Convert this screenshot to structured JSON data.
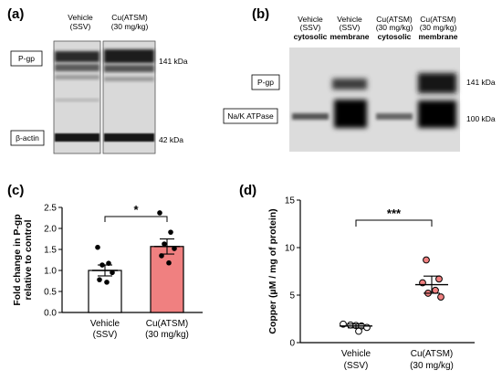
{
  "panel_a": {
    "letter": "(a)",
    "lanes": [
      {
        "line1": "Vehicle",
        "line2": "(SSV)"
      },
      {
        "line1": "Cu(ATSM)",
        "line2": "(30 mg/kg)"
      }
    ],
    "labels": {
      "pgp": "P-gp",
      "actin": "β-actin"
    },
    "kda": {
      "top": "141 kDa",
      "bottom": "42 kDa"
    }
  },
  "panel_b": {
    "letter": "(b)",
    "lanes": [
      {
        "line1": "Vehicle",
        "line2": "(SSV)",
        "fraction": "cytosolic"
      },
      {
        "line1": "Vehicle",
        "line2": "(SSV)",
        "fraction": "membrane"
      },
      {
        "line1": "Cu(ATSM)",
        "line2": "(30 mg/kg)",
        "fraction": "cytosolic"
      },
      {
        "line1": "Cu(ATSM)",
        "line2": "(30 mg/kg)",
        "fraction": "membrane"
      }
    ],
    "labels": {
      "pgp": "P-gp",
      "nak": "Na/K ATPase"
    },
    "kda": {
      "top": "141 kDa",
      "bottom": "100 kDa"
    }
  },
  "panel_c": {
    "letter": "(c)",
    "sig": "*",
    "chart_data": {
      "type": "bar",
      "ylabel_line1": "Fold change in P-gp",
      "ylabel_line2": "relative to control",
      "ylim": [
        0,
        2.5
      ],
      "yticks": [
        "0.0",
        "0.5",
        "1.0",
        "1.5",
        "2.0",
        "2.5"
      ],
      "categories": [
        {
          "line1": "Vehicle",
          "line2": "(SSV)"
        },
        {
          "line1": "Cu(ATSM)",
          "line2": "(30 mg/kg)"
        }
      ],
      "values": [
        1.0,
        1.57
      ],
      "sem": [
        0.13,
        0.18
      ],
      "bar_colors": [
        "#ffffff",
        "#f08080"
      ],
      "points": [
        [
          1.55,
          1.17,
          1.13,
          0.95,
          0.78,
          0.72
        ],
        [
          2.37,
          1.91,
          1.63,
          1.52,
          1.35,
          1.18
        ]
      ]
    }
  },
  "panel_d": {
    "letter": "(d)",
    "sig": "***",
    "chart_data": {
      "type": "scatter",
      "ylabel": "Copper (µM / mg of protein)",
      "ylim": [
        0,
        15
      ],
      "yticks": [
        "0",
        "5",
        "10",
        "15"
      ],
      "categories": [
        {
          "line1": "Vehicle",
          "line2": "(SSV)"
        },
        {
          "line1": "Cu(ATSM)",
          "line2": "(30 mg/kg)"
        }
      ],
      "means": [
        1.75,
        6.1
      ],
      "sem": [
        0.2,
        0.9
      ],
      "point_colors": [
        "#ffffff",
        "#f08080"
      ],
      "points": [
        [
          1.95,
          1.85,
          1.8,
          1.75,
          1.6,
          1.2
        ],
        [
          8.7,
          6.7,
          6.3,
          5.5,
          5.2,
          4.8
        ]
      ]
    }
  }
}
